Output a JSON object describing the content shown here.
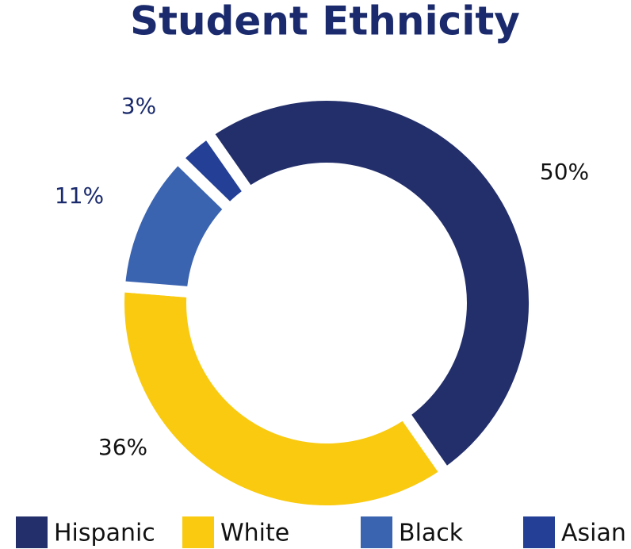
{
  "chart_data": {
    "type": "donut",
    "title": "Student Ethnicity",
    "categories": [
      "Hispanic",
      "White",
      "Black",
      "Asian"
    ],
    "values": [
      50,
      36,
      11,
      3
    ],
    "value_labels": [
      "50%",
      "36%",
      "11%",
      "3%"
    ],
    "colors": [
      "#232f6b",
      "#f9ca0f",
      "#3a63b0",
      "#233f96"
    ],
    "legend": "bottom"
  }
}
